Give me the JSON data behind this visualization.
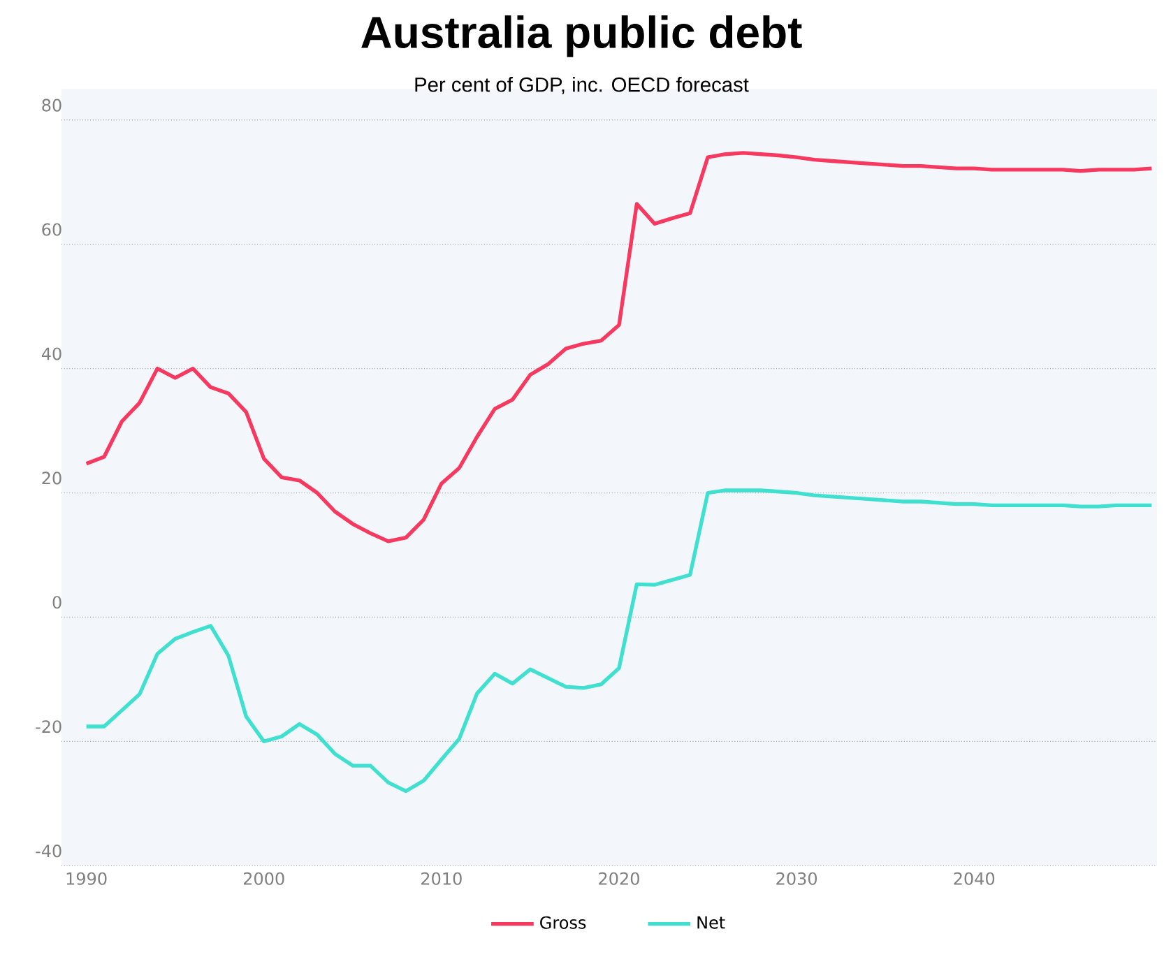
{
  "chart_data": {
    "type": "line",
    "title": "Australia public debt",
    "subtitle": "Per cent of GDP, inc. OECD forecast",
    "x": [
      1990,
      1991,
      1992,
      1993,
      1994,
      1995,
      1996,
      1997,
      1998,
      1999,
      2000,
      2001,
      2002,
      2003,
      2004,
      2005,
      2006,
      2007,
      2008,
      2009,
      2010,
      2011,
      2012,
      2013,
      2014,
      2015,
      2016,
      2017,
      2018,
      2019,
      2020,
      2021,
      2022,
      2023,
      2024,
      2025,
      2026,
      2027,
      2028,
      2029,
      2030,
      2031,
      2032,
      2033,
      2034,
      2035,
      2036,
      2037,
      2038,
      2039,
      2040,
      2041,
      2042,
      2043,
      2044,
      2045,
      2046,
      2047,
      2048,
      2049,
      2050
    ],
    "series": [
      {
        "name": "Gross",
        "color": "#f7385f",
        "values": [
          24.7,
          25.8,
          31.5,
          34.5,
          40,
          38.5,
          40,
          37,
          36,
          33,
          25.5,
          22.5,
          22,
          20,
          17,
          15,
          13.5,
          12.2,
          12.8,
          15.7,
          21.5,
          24,
          29,
          33.5,
          35,
          39,
          40.7,
          43.2,
          44,
          44.5,
          47,
          66.5,
          63.3,
          64.2,
          65,
          74,
          74.5,
          74.7,
          74.5,
          74.3,
          74,
          73.6,
          73.4,
          73.2,
          73,
          72.8,
          72.6,
          72.6,
          72.4,
          72.2,
          72.2,
          72,
          72,
          72,
          72,
          72,
          71.8,
          72,
          72,
          72,
          72.2
        ]
      },
      {
        "name": "Net",
        "color": "#40e0d0",
        "values": [
          -17.6,
          -17.6,
          -15,
          -12.4,
          -5.9,
          -3.5,
          -2.4,
          -1.4,
          -6.2,
          -16,
          -20,
          -19.2,
          -17.2,
          -18.9,
          -22,
          -23.9,
          -23.9,
          -26.6,
          -28,
          -26.3,
          -22.9,
          -19.6,
          -12.3,
          -9.1,
          -10.7,
          -8.4,
          -9.8,
          -11.2,
          -11.4,
          -10.8,
          -8.2,
          5.3,
          5.2,
          6,
          6.8,
          20,
          20.4,
          20.4,
          20.4,
          20.2,
          20,
          19.6,
          19.4,
          19.2,
          19,
          18.8,
          18.6,
          18.6,
          18.4,
          18.2,
          18.2,
          18,
          18,
          18,
          18,
          18,
          17.8,
          17.8,
          18,
          18,
          18
        ]
      }
    ],
    "xlim": [
      1988.6,
      2050.3
    ],
    "ylim": [
      -40,
      85
    ],
    "xticks": [
      1990,
      2000,
      2010,
      2020,
      2030,
      2040
    ],
    "yticks": [
      -40,
      -20,
      0,
      20,
      40,
      60,
      80
    ],
    "grid": "y",
    "legend": "bottom",
    "marker": "none",
    "line_style": "solid"
  }
}
